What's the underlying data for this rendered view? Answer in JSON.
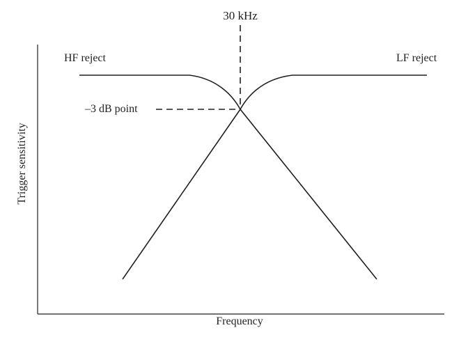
{
  "diagram": {
    "top_label": "30 kHz",
    "hf_label": "HF reject",
    "lf_label": "LF reject",
    "db_label": "–3 dB  point",
    "x_axis_label": "Frequency",
    "y_axis_label": "Trigger sensitivity",
    "line_color": "#231f20"
  }
}
